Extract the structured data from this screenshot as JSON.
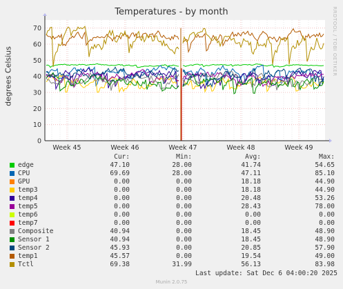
{
  "chart_data": {
    "type": "line",
    "title": "Temperatures - by month",
    "ylabel": "degrees Celsius",
    "ylim": [
      0,
      75
    ],
    "yticks": [
      "0",
      "10",
      "20",
      "30",
      "40",
      "50",
      "60",
      "70"
    ],
    "xticks": [
      "Week 45",
      "Week 46",
      "Week 47",
      "Week 48",
      "Week 49"
    ],
    "grid": true,
    "series": [
      {
        "name": "edge",
        "color": "#00cc00",
        "level": 47.1,
        "lo": 45.5,
        "hi": 48.5
      },
      {
        "name": "CPU",
        "color": "#0066b3",
        "level": 43.5,
        "lo": 34,
        "hi": 47
      },
      {
        "name": "GPU",
        "color": "#ff8000",
        "level": 0,
        "lo": 0,
        "hi": 0
      },
      {
        "name": "temp3",
        "color": "#ffcc00",
        "level": 37,
        "lo": 28,
        "hi": 42
      },
      {
        "name": "temp4",
        "color": "#330099",
        "level": 41.5,
        "lo": 32,
        "hi": 47
      },
      {
        "name": "temp5",
        "color": "#990099",
        "level": 41,
        "lo": 33,
        "hi": 46
      },
      {
        "name": "temp6",
        "color": "#ccff00",
        "level": 0,
        "lo": 0,
        "hi": 0
      },
      {
        "name": "temp7",
        "color": "#ff0000",
        "level": 0,
        "lo": 0,
        "hi": 0
      },
      {
        "name": "Composite",
        "color": "#808080",
        "level": 38.5,
        "lo": 30,
        "hi": 46
      },
      {
        "name": "Sensor 1",
        "color": "#008f00",
        "level": 38,
        "lo": 29,
        "hi": 45
      },
      {
        "name": "Sensor 2",
        "color": "#00487d",
        "level": 42,
        "lo": 33,
        "hi": 48
      },
      {
        "name": "temp1",
        "color": "#b35a00",
        "level": 65,
        "lo": 54,
        "hi": 70
      },
      {
        "name": "Tctl",
        "color": "#b38f00",
        "level": 63,
        "lo": 45,
        "hi": 72
      }
    ]
  },
  "legend": {
    "headers": {
      "cur": "Cur:",
      "min": "Min:",
      "avg": "Avg:",
      "max": "Max:"
    },
    "rows": [
      {
        "name": "edge",
        "color": "#00cc00",
        "cur": "47.10",
        "min": "28.00",
        "avg": "41.74",
        "max": "54.65"
      },
      {
        "name": "CPU",
        "color": "#0066b3",
        "cur": "69.69",
        "min": "28.00",
        "avg": "47.11",
        "max": "85.10"
      },
      {
        "name": "GPU",
        "color": "#ff8000",
        "cur": "0.00",
        "min": "0.00",
        "avg": "18.18",
        "max": "44.90"
      },
      {
        "name": "temp3",
        "color": "#ffcc00",
        "cur": "0.00",
        "min": "0.00",
        "avg": "18.18",
        "max": "44.90"
      },
      {
        "name": "temp4",
        "color": "#330099",
        "cur": "0.00",
        "min": "0.00",
        "avg": "20.48",
        "max": "53.26"
      },
      {
        "name": "temp5",
        "color": "#990099",
        "cur": "0.00",
        "min": "0.00",
        "avg": "28.43",
        "max": "78.00"
      },
      {
        "name": "temp6",
        "color": "#ccff00",
        "cur": "0.00",
        "min": "0.00",
        "avg": "0.00",
        "max": "0.00"
      },
      {
        "name": "temp7",
        "color": "#ff0000",
        "cur": "0.00",
        "min": "0.00",
        "avg": "0.00",
        "max": "0.00"
      },
      {
        "name": "Composite",
        "color": "#808080",
        "cur": "40.94",
        "min": "0.00",
        "avg": "18.45",
        "max": "48.90"
      },
      {
        "name": "Sensor 1",
        "color": "#008f00",
        "cur": "40.94",
        "min": "0.00",
        "avg": "18.45",
        "max": "48.90"
      },
      {
        "name": "Sensor 2",
        "color": "#00487d",
        "cur": "45.93",
        "min": "0.00",
        "avg": "20.85",
        "max": "57.90"
      },
      {
        "name": "temp1",
        "color": "#b35a00",
        "cur": "45.57",
        "min": "0.00",
        "avg": "19.54",
        "max": "49.00"
      },
      {
        "name": "Tctl",
        "color": "#b38f00",
        "cur": "69.38",
        "min": "31.99",
        "avg": "56.13",
        "max": "83.98"
      }
    ]
  },
  "last_update": "Last update: Sat Dec  6 04:00:20 2025",
  "watermark": "RRDTOOL / TOBI OETIKER",
  "footer": "Munin 2.0.75"
}
